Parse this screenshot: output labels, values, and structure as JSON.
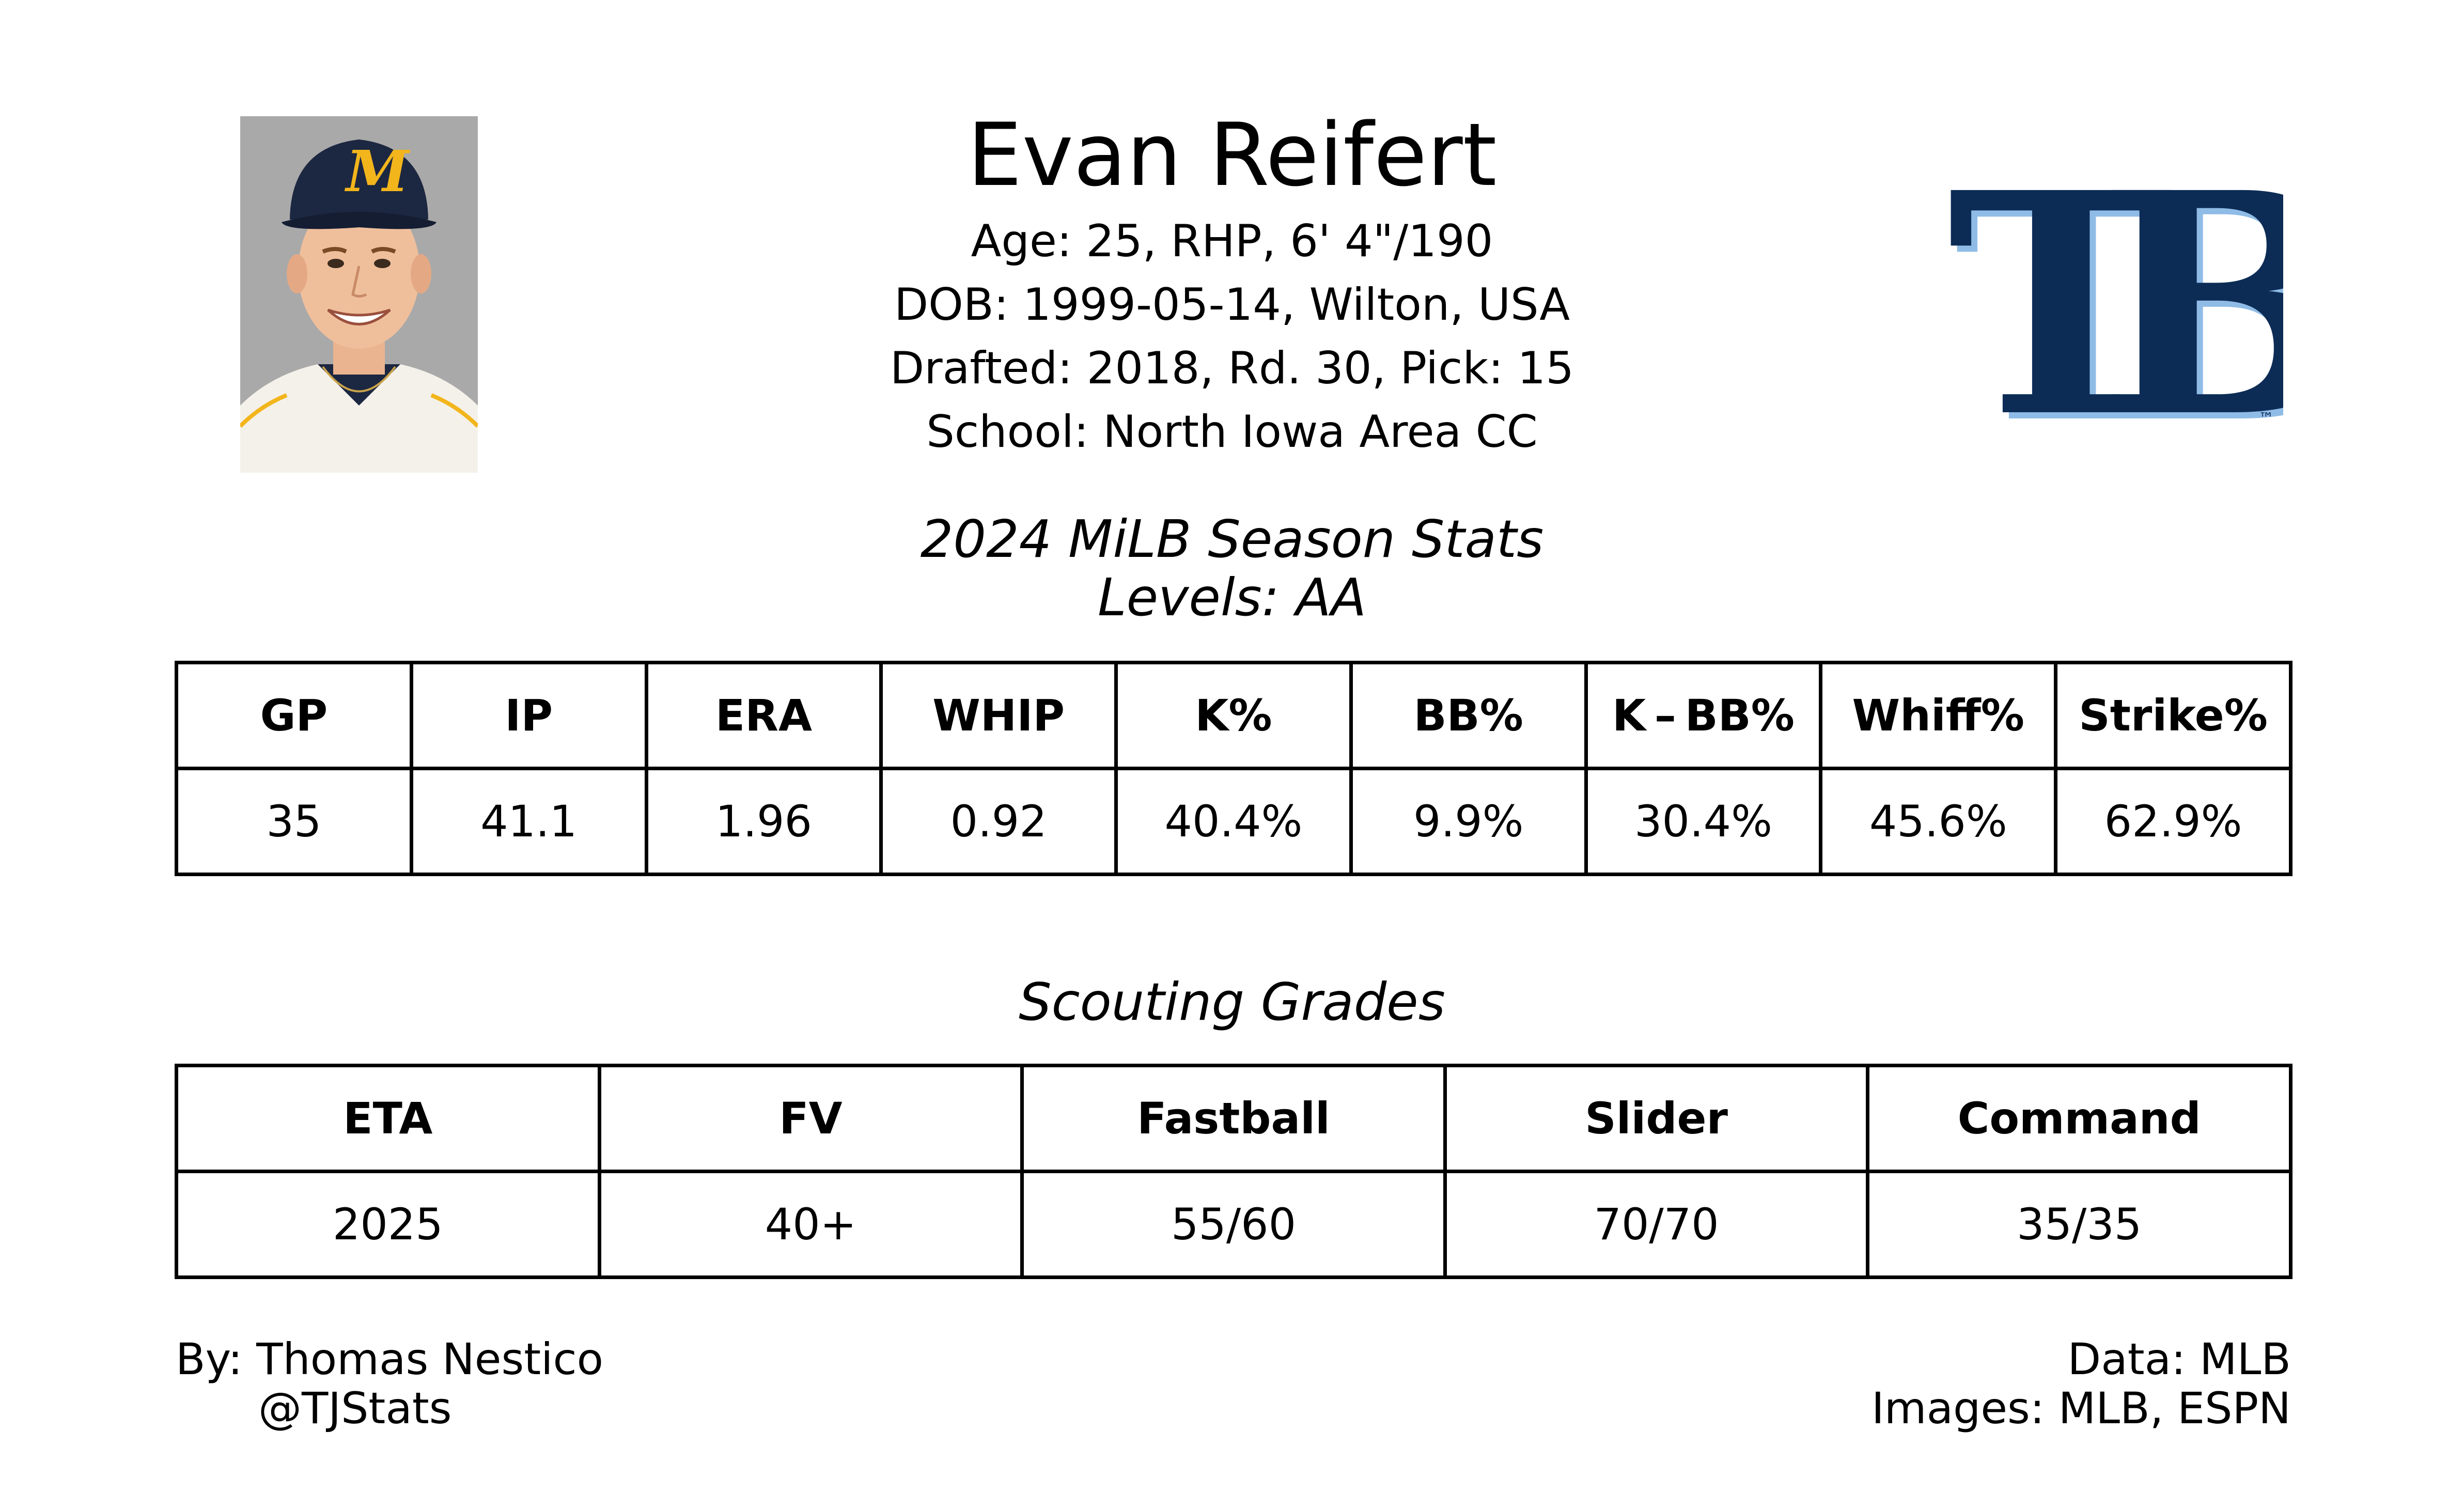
{
  "player": {
    "name": "Evan Reifert",
    "age_line": "Age: 25, RHP, 6' 4\"/190",
    "dob_line": "DOB: 1999-05-14, Wilton, USA",
    "draft_line": "Drafted: 2018, Rd. 30, Pick: 15",
    "school_line": "School: North Iowa Area CC"
  },
  "team_logo": {
    "letters": "TB",
    "trademark": "™",
    "primary_color": "#0c2c56",
    "accent_color": "#8fbce6"
  },
  "season_stats": {
    "title": "2024 MiLB Season Stats",
    "levels": "Levels: AA",
    "headers": [
      "GP",
      "IP",
      "ERA",
      "WHIP",
      "K%",
      "BB%",
      "K – BB%",
      "Whiff%",
      "Strike%"
    ],
    "values": [
      "35",
      "41.1",
      "1.96",
      "0.92",
      "40.4%",
      "9.9%",
      "30.4%",
      "45.6%",
      "62.9%"
    ]
  },
  "scouting": {
    "title": "Scouting Grades",
    "headers": [
      "ETA",
      "FV",
      "Fastball",
      "Slider",
      "Command"
    ],
    "values": [
      "2025",
      "40+",
      "55/60",
      "70/70",
      "35/35"
    ]
  },
  "footer": {
    "by": "By: Thomas Nestico",
    "handle": "@TJStats",
    "data": "Data: MLB",
    "images": "Images: MLB, ESPN"
  },
  "photo": {
    "cap_letter": "M",
    "cap_color": "#1c2741",
    "logo_color": "#f2b51c"
  }
}
